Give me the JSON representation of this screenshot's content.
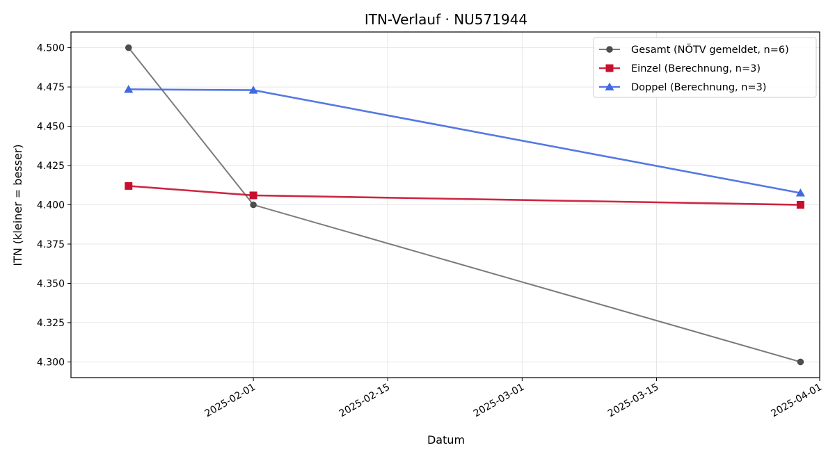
{
  "chart_data": {
    "type": "line",
    "title": "ITN-Verlauf · NU571944",
    "xlabel": "Datum",
    "ylabel": "ITN  (kleiner = besser)",
    "xlim": [
      "2025-01-13",
      "2025-04-01"
    ],
    "ylim": [
      4.29,
      4.51
    ],
    "grid": true,
    "legend_position": "top-right",
    "x_ticks": [
      "2025-02-01",
      "2025-02-15",
      "2025-03-01",
      "2025-03-15",
      "2025-04-01"
    ],
    "y_ticks": [
      4.3,
      4.325,
      4.35,
      4.375,
      4.4,
      4.425,
      4.45,
      4.475,
      4.5
    ],
    "y_tick_labels": [
      "4.300",
      "4.325",
      "4.350",
      "4.375",
      "4.400",
      "4.425",
      "4.450",
      "4.475",
      "4.500"
    ],
    "series": [
      {
        "name": "Gesamt (NÖTV gemeldet, n=6)",
        "color": "#4d4d4d",
        "marker": "circle",
        "x": [
          "2025-01-19",
          "2025-02-01",
          "2025-03-30"
        ],
        "y": [
          4.5,
          4.4,
          4.3
        ]
      },
      {
        "name": "Einzel (Berechnung, n=3)",
        "color": "#c8102e",
        "marker": "square",
        "x": [
          "2025-01-19",
          "2025-02-01",
          "2025-03-30"
        ],
        "y": [
          4.412,
          4.406,
          4.4
        ]
      },
      {
        "name": "Doppel (Berechnung, n=3)",
        "color": "#4169e1",
        "marker": "triangle",
        "x": [
          "2025-01-19",
          "2025-02-01",
          "2025-03-30"
        ],
        "y": [
          4.4735,
          4.473,
          4.4075
        ]
      }
    ]
  }
}
